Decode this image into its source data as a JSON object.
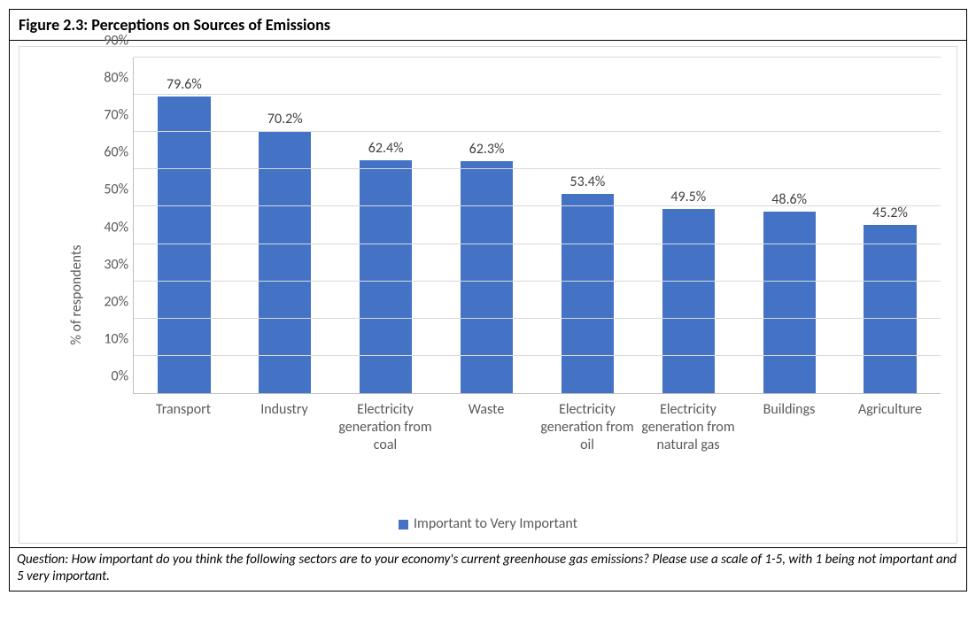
{
  "figure": {
    "title": "Figure 2.3: Perceptions on Sources of Emissions",
    "caption": "Question: How important do you think the following sectors are to your economy's current greenhouse gas emissions? Please use a scale of 1-5, with 1 being not important and 5 very important."
  },
  "chart": {
    "type": "bar",
    "y_axis_label": "% of respondents",
    "ylim_min": 0,
    "ylim_max": 90,
    "ytick_step": 10,
    "ytick_suffix": "%",
    "grid_color": "#d9d9d9",
    "axis_color": "#bfbfbf",
    "background_color": "#ffffff",
    "text_color": "#595959",
    "label_fontsize": 16,
    "tick_fontsize": 16,
    "bar_color": "#4472c4",
    "bar_width_ratio": 0.52,
    "categories": [
      "Transport",
      "Industry",
      "Electricity generation from coal",
      "Waste",
      "Electricity generation from oil",
      "Electricity generation from natural gas",
      "Buildings",
      "Agriculture"
    ],
    "values": [
      79.6,
      70.2,
      62.4,
      62.3,
      53.4,
      49.5,
      48.6,
      45.2
    ],
    "value_labels": [
      "79.6%",
      "70.2%",
      "62.4%",
      "62.3%",
      "53.4%",
      "49.5%",
      "48.6%",
      "45.2%"
    ],
    "legend": {
      "label": "Important to Very Important",
      "swatch_color": "#4472c4"
    }
  }
}
